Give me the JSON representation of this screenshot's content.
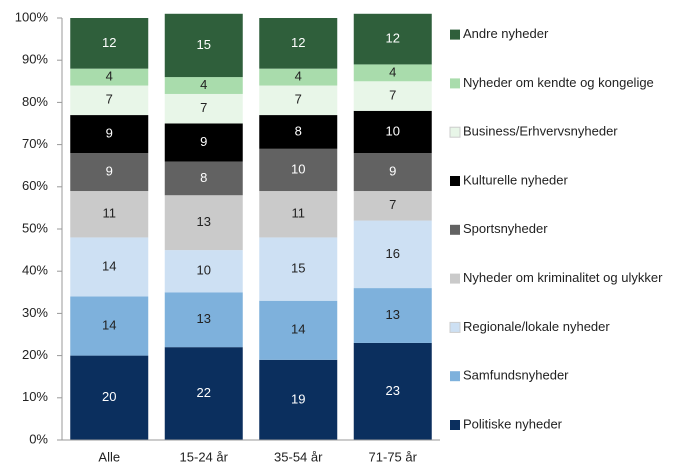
{
  "chart_data": {
    "type": "stacked_bar",
    "categories": [
      "Alle",
      "15-24 år",
      "35-54 år",
      "71-75 år"
    ],
    "series": [
      {
        "name": "Politiske nyheder",
        "color": "#0b2f5e",
        "values": [
          20,
          22,
          19,
          23
        ]
      },
      {
        "name": "Samfundsnyheder",
        "color": "#7eb1dc",
        "values": [
          14,
          13,
          14,
          13
        ]
      },
      {
        "name": "Regionale/lokale nyheder",
        "color": "#cde0f3",
        "values": [
          14,
          10,
          15,
          16
        ]
      },
      {
        "name": "Nyheder om kriminalitet og ulykker",
        "color": "#cacaca",
        "values": [
          11,
          13,
          11,
          7
        ]
      },
      {
        "name": "Sportsnyheder",
        "color": "#626262",
        "values": [
          9,
          8,
          10,
          9
        ]
      },
      {
        "name": "Kulturelle nyheder",
        "color": "#000000",
        "values": [
          9,
          9,
          8,
          10
        ]
      },
      {
        "name": "Business/Erhvervsnyheder",
        "color": "#e8f6e8",
        "values": [
          7,
          7,
          7,
          7
        ]
      },
      {
        "name": "Nyheder om kendte og kongelige",
        "color": "#a9dcac",
        "values": [
          4,
          4,
          4,
          4
        ]
      },
      {
        "name": "Andre nyheder",
        "color": "#2f5f3b",
        "values": [
          12,
          15,
          12,
          12
        ]
      }
    ],
    "ylim": [
      0,
      100
    ],
    "yticks": [
      {
        "value": 0,
        "label": "0%"
      },
      {
        "value": 10,
        "label": "10%"
      },
      {
        "value": 20,
        "label": "20%"
      },
      {
        "value": 30,
        "label": "30%"
      },
      {
        "value": 40,
        "label": "40%"
      },
      {
        "value": 50,
        "label": "50%"
      },
      {
        "value": 60,
        "label": "60%"
      },
      {
        "value": 70,
        "label": "70%"
      },
      {
        "value": 80,
        "label": "80%"
      },
      {
        "value": 90,
        "label": "90%"
      },
      {
        "value": 100,
        "label": "100%"
      }
    ],
    "legend": "right"
  }
}
